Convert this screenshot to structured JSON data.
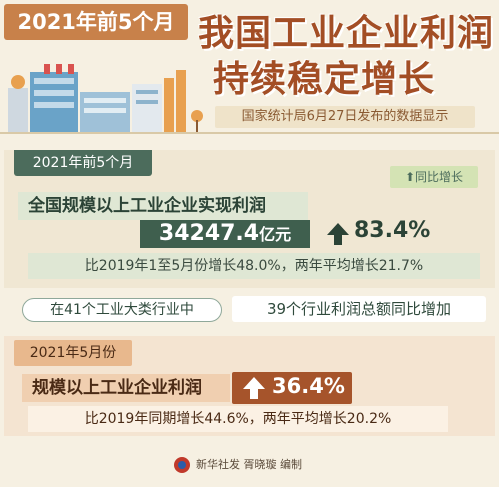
{
  "header": {
    "date_tag": "2021年前5个月",
    "title_line1": "我国工业企业利润",
    "title_line2": "持续稳定增长",
    "source": "国家统计局6月27日发布的数据显示"
  },
  "section1": {
    "label": "2021年前5个月",
    "yoy_tag": "同比增长",
    "main_label": "全国规模以上工业企业实现利润",
    "value": "34247.4",
    "unit": "亿元",
    "growth": "83.4%",
    "compare": "比2019年1至5月份增长48.0%，两年平均增长21.7%"
  },
  "industry": {
    "left": "在41个工业大类行业中",
    "right": "39个行业利润总额同比增加"
  },
  "section2": {
    "label": "2021年5月份",
    "main_label": "规模以上工业企业利润",
    "growth": "36.4%",
    "compare": "比2019年同期增长44.6%，两年平均增长20.2%"
  },
  "footer": {
    "credit": "新华社发 胥晓璇 编制"
  },
  "colors": {
    "accent_brown": "#a34e25",
    "accent_green": "#3f5f4e",
    "background": "#f6f0e2"
  },
  "icons": [
    "factory-icon",
    "tree-icon",
    "arrow-up-icon",
    "xinhua-logo-icon"
  ]
}
